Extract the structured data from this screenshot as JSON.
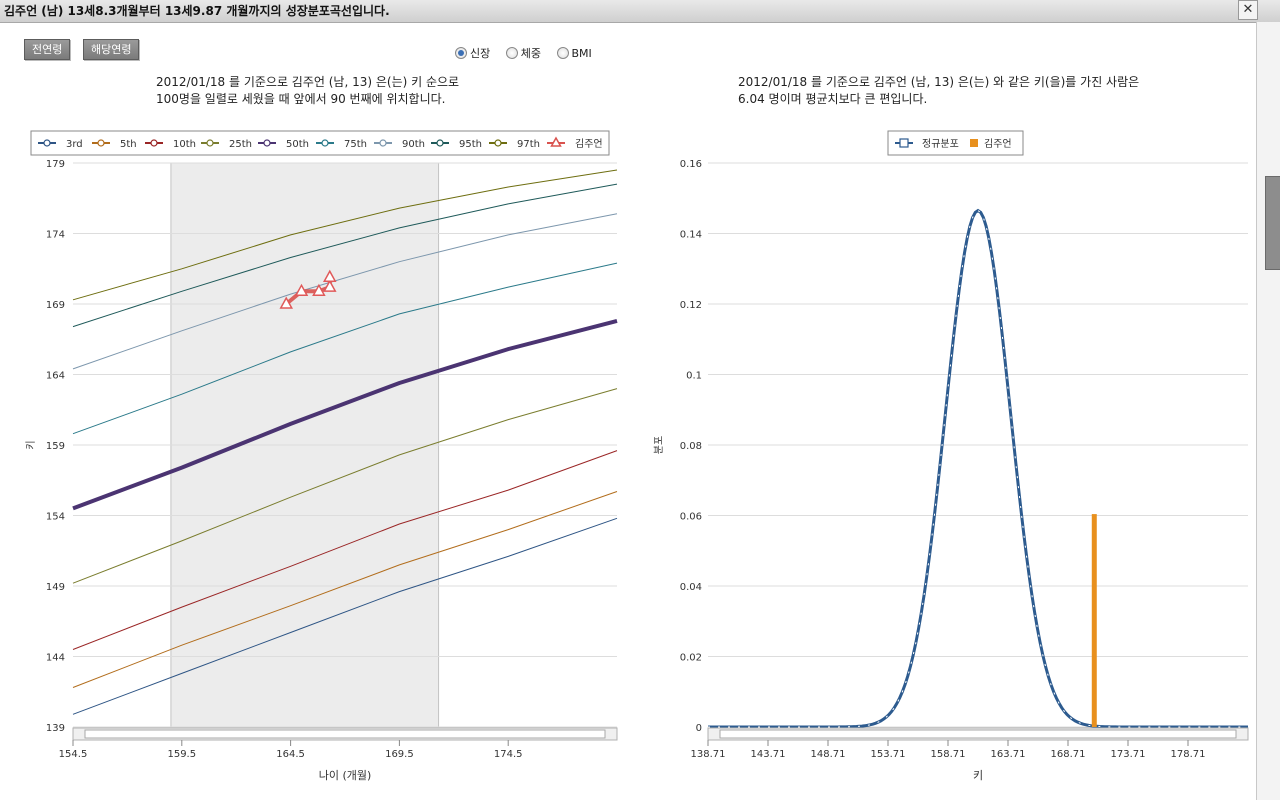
{
  "window": {
    "title": "김주언 (남) 13세8.3개월부터 13세9.87 개월까지의 성장분포곡선입니다.",
    "close_label": "✕"
  },
  "toolbar": {
    "all_ages_label": "전연령",
    "this_age_label": "해당연령"
  },
  "metric_selector": {
    "options": [
      "신장",
      "체중",
      "BMI"
    ],
    "selected": "신장"
  },
  "left_caption": {
    "line1": "2012/01/18 를 기준으로 김주언 (남, 13) 은(는) 키 순으로",
    "line2": "100명을 일렬로 세웠을 때 앞에서 90 번째에 위치합니다."
  },
  "right_caption": {
    "line1": "2012/01/18 를 기준으로 김주언 (남, 13) 은(는) 와 같은 키(을)를 가진 사람은",
    "line2": "6.04 명이며 평균치보다 큰 편입니다."
  },
  "chart_data": [
    {
      "type": "line",
      "xlabel": "나이 (개월)",
      "ylabel": "키",
      "xlim": [
        154.5,
        179.5
      ],
      "ylim": [
        139,
        179
      ],
      "xticks": [
        "154.5",
        "159.5",
        "164.5",
        "169.5",
        "174.5"
      ],
      "yticks": [
        "139",
        "144",
        "149",
        "154",
        "159",
        "164",
        "169",
        "174",
        "179"
      ],
      "shaded_range": [
        159.0,
        171.3
      ],
      "legend_position": "top",
      "series": [
        {
          "name": "3rd",
          "color": "#2e5585",
          "x": [
            154.5,
            159.5,
            164.5,
            169.5,
            174.5,
            179.5
          ],
          "values": [
            139.9,
            142.8,
            145.7,
            148.6,
            151.1,
            153.8
          ]
        },
        {
          "name": "5th",
          "color": "#b26d1c",
          "x": [
            154.5,
            159.5,
            164.5,
            169.5,
            174.5,
            179.5
          ],
          "values": [
            141.8,
            144.8,
            147.6,
            150.5,
            153.0,
            155.7
          ]
        },
        {
          "name": "10th",
          "color": "#9a2626",
          "x": [
            154.5,
            159.5,
            164.5,
            169.5,
            174.5,
            179.5
          ],
          "values": [
            144.5,
            147.5,
            150.4,
            153.4,
            155.8,
            158.6
          ]
        },
        {
          "name": "25th",
          "color": "#7a7d2e",
          "x": [
            154.5,
            159.5,
            164.5,
            169.5,
            174.5,
            179.5
          ],
          "values": [
            149.2,
            152.2,
            155.3,
            158.3,
            160.8,
            163.0
          ]
        },
        {
          "name": "50th",
          "color": "#4b3472",
          "x": [
            154.5,
            159.5,
            164.5,
            169.5,
            174.5,
            179.5
          ],
          "values": [
            154.5,
            157.4,
            160.5,
            163.4,
            165.8,
            167.8
          ]
        },
        {
          "name": "75th",
          "color": "#2b7a8a",
          "x": [
            154.5,
            159.5,
            164.5,
            169.5,
            174.5,
            179.5
          ],
          "values": [
            159.8,
            162.6,
            165.6,
            168.3,
            170.2,
            171.9
          ]
        },
        {
          "name": "90th",
          "color": "#7d97ad",
          "x": [
            154.5,
            159.5,
            164.5,
            169.5,
            174.5,
            179.5
          ],
          "values": [
            164.4,
            167.1,
            169.7,
            172.0,
            173.9,
            175.4
          ]
        },
        {
          "name": "95th",
          "color": "#1f5a5a",
          "x": [
            154.5,
            159.5,
            164.5,
            169.5,
            174.5,
            179.5
          ],
          "values": [
            167.4,
            169.9,
            172.3,
            174.4,
            176.1,
            177.5
          ]
        },
        {
          "name": "97th",
          "color": "#6e6e10",
          "x": [
            154.5,
            159.5,
            164.5,
            169.5,
            174.5,
            179.5
          ],
          "values": [
            169.3,
            171.5,
            173.9,
            175.8,
            177.3,
            178.5
          ]
        },
        {
          "name": "김주언",
          "color": "#d9534f",
          "x": [
            164.3,
            165.0,
            165.8,
            166.3,
            166.3
          ],
          "values": [
            169.0,
            169.9,
            169.9,
            170.2,
            170.9
          ],
          "markers": "triangle"
        }
      ]
    },
    {
      "type": "line",
      "xlabel": "키",
      "ylabel": "분포",
      "xlim": [
        138.71,
        183.71
      ],
      "ylim": [
        0,
        0.16
      ],
      "xticks": [
        "138.71",
        "143.71",
        "148.71",
        "153.71",
        "158.71",
        "163.71",
        "168.71",
        "173.71",
        "178.71"
      ],
      "yticks": [
        "0",
        "0.02",
        "0.04",
        "0.06",
        "0.08",
        "0.1",
        "0.12",
        "0.14",
        "0.16"
      ],
      "legend_position": "top",
      "series": [
        {
          "name": "정규분포",
          "color": "#2d5b8f",
          "distribution": "normal",
          "mean": 161.21,
          "sd": 2.72,
          "peak": 0.1465
        },
        {
          "name": "김주언",
          "color": "#e8901e",
          "type": "bar",
          "x": [
            170.9
          ],
          "values": [
            0.0604
          ]
        }
      ]
    }
  ]
}
